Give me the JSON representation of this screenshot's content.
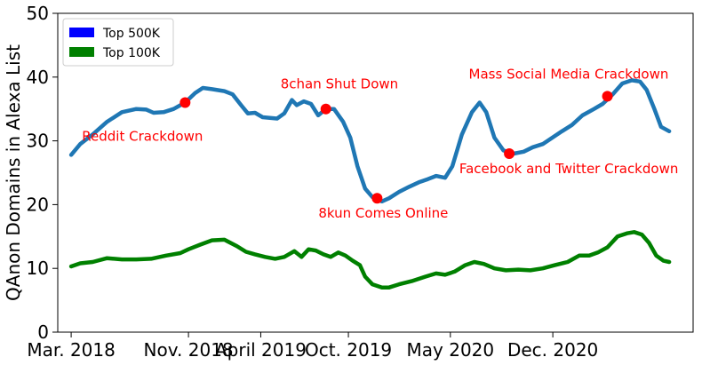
{
  "chart_data": {
    "type": "line",
    "title": "",
    "xlabel": "",
    "ylabel": "QAnon Domains in Alexa List",
    "ylim": [
      0,
      50
    ],
    "yticks": [
      0,
      10,
      20,
      30,
      40,
      50
    ],
    "xlim": [
      "2018-02-01",
      "2021-09-20"
    ],
    "xticks": [
      {
        "date": "2018-03-01",
        "label": "Mar. 2018"
      },
      {
        "date": "2018-11-01",
        "label": "Nov. 2018"
      },
      {
        "date": "2019-04-01",
        "label": "April 2019"
      },
      {
        "date": "2019-10-01",
        "label": "Oct. 2019"
      },
      {
        "date": "2020-05-01",
        "label": "May 2020"
      },
      {
        "date": "2020-12-01",
        "label": "Dec. 2020"
      }
    ],
    "grid": false,
    "legend": {
      "position": "top-left",
      "entries": [
        {
          "label": "Top 500K",
          "color": "#0000ff"
        },
        {
          "label": "Top 100K",
          "color": "#008000"
        }
      ]
    },
    "series": [
      {
        "key": "top500k",
        "color": "#1f77b4",
        "points": [
          [
            "2018-03-01",
            27.8
          ],
          [
            "2018-03-20",
            29.5
          ],
          [
            "2018-04-15",
            31.0
          ],
          [
            "2018-05-15",
            33.0
          ],
          [
            "2018-06-15",
            34.5
          ],
          [
            "2018-07-15",
            35.0
          ],
          [
            "2018-08-05",
            34.9
          ],
          [
            "2018-08-20",
            34.4
          ],
          [
            "2018-09-10",
            34.5
          ],
          [
            "2018-10-01",
            35.0
          ],
          [
            "2018-10-25",
            36.0
          ],
          [
            "2018-11-15",
            37.5
          ],
          [
            "2018-12-01",
            38.3
          ],
          [
            "2018-12-20",
            38.1
          ],
          [
            "2019-01-15",
            37.8
          ],
          [
            "2019-02-01",
            37.3
          ],
          [
            "2019-02-20",
            35.5
          ],
          [
            "2019-03-05",
            34.3
          ],
          [
            "2019-03-20",
            34.4
          ],
          [
            "2019-04-05",
            33.7
          ],
          [
            "2019-04-20",
            33.6
          ],
          [
            "2019-05-05",
            33.5
          ],
          [
            "2019-05-20",
            34.3
          ],
          [
            "2019-06-05",
            36.4
          ],
          [
            "2019-06-15",
            35.6
          ],
          [
            "2019-06-30",
            36.2
          ],
          [
            "2019-07-15",
            35.8
          ],
          [
            "2019-07-30",
            34.0
          ],
          [
            "2019-08-15",
            35.0
          ],
          [
            "2019-09-01",
            35.0
          ],
          [
            "2019-09-20",
            33.0
          ],
          [
            "2019-10-05",
            30.5
          ],
          [
            "2019-10-20",
            26.0
          ],
          [
            "2019-11-05",
            22.5
          ],
          [
            "2019-11-20",
            21.2
          ],
          [
            "2019-12-10",
            20.5
          ],
          [
            "2019-12-25",
            21.0
          ],
          [
            "2020-01-15",
            22.0
          ],
          [
            "2020-02-05",
            22.8
          ],
          [
            "2020-02-25",
            23.5
          ],
          [
            "2020-03-15",
            24.0
          ],
          [
            "2020-04-01",
            24.5
          ],
          [
            "2020-04-20",
            24.2
          ],
          [
            "2020-05-05",
            26.0
          ],
          [
            "2020-05-25",
            31.0
          ],
          [
            "2020-06-15",
            34.5
          ],
          [
            "2020-07-01",
            36.0
          ],
          [
            "2020-07-15",
            34.5
          ],
          [
            "2020-08-01",
            30.5
          ],
          [
            "2020-08-20",
            28.5
          ],
          [
            "2020-09-10",
            28.0
          ],
          [
            "2020-10-01",
            28.3
          ],
          [
            "2020-10-20",
            29.0
          ],
          [
            "2020-11-10",
            29.5
          ],
          [
            "2020-11-30",
            30.5
          ],
          [
            "2020-12-20",
            31.5
          ],
          [
            "2021-01-10",
            32.5
          ],
          [
            "2021-02-01",
            34.0
          ],
          [
            "2021-02-25",
            35.0
          ],
          [
            "2021-03-15",
            35.8
          ],
          [
            "2021-03-25",
            36.5
          ],
          [
            "2021-04-05",
            37.3
          ],
          [
            "2021-04-25",
            39.0
          ],
          [
            "2021-05-15",
            39.5
          ],
          [
            "2021-06-01",
            39.3
          ],
          [
            "2021-06-15",
            38.0
          ],
          [
            "2021-07-01",
            35.0
          ],
          [
            "2021-07-15",
            32.2
          ],
          [
            "2021-08-01",
            31.5
          ]
        ]
      },
      {
        "key": "top100k",
        "color": "#008000",
        "points": [
          [
            "2018-03-01",
            10.3
          ],
          [
            "2018-03-20",
            10.8
          ],
          [
            "2018-04-15",
            11.0
          ],
          [
            "2018-05-15",
            11.6
          ],
          [
            "2018-06-15",
            11.4
          ],
          [
            "2018-07-15",
            11.4
          ],
          [
            "2018-08-15",
            11.5
          ],
          [
            "2018-09-15",
            12.0
          ],
          [
            "2018-10-15",
            12.4
          ],
          [
            "2018-11-01",
            13.0
          ],
          [
            "2018-11-25",
            13.7
          ],
          [
            "2018-12-20",
            14.4
          ],
          [
            "2019-01-15",
            14.5
          ],
          [
            "2019-02-10",
            13.5
          ],
          [
            "2019-03-01",
            12.6
          ],
          [
            "2019-03-20",
            12.2
          ],
          [
            "2019-04-10",
            11.8
          ],
          [
            "2019-05-01",
            11.5
          ],
          [
            "2019-05-20",
            11.8
          ],
          [
            "2019-06-10",
            12.7
          ],
          [
            "2019-06-25",
            11.8
          ],
          [
            "2019-07-10",
            13.0
          ],
          [
            "2019-07-25",
            12.8
          ],
          [
            "2019-08-10",
            12.2
          ],
          [
            "2019-08-25",
            11.8
          ],
          [
            "2019-09-10",
            12.5
          ],
          [
            "2019-09-25",
            12.0
          ],
          [
            "2019-10-10",
            11.2
          ],
          [
            "2019-10-25",
            10.5
          ],
          [
            "2019-11-05",
            8.7
          ],
          [
            "2019-11-20",
            7.5
          ],
          [
            "2019-12-10",
            7.0
          ],
          [
            "2019-12-25",
            7.0
          ],
          [
            "2020-01-15",
            7.5
          ],
          [
            "2020-02-10",
            8.0
          ],
          [
            "2020-03-10",
            8.7
          ],
          [
            "2020-04-01",
            9.2
          ],
          [
            "2020-04-20",
            9.0
          ],
          [
            "2020-05-10",
            9.5
          ],
          [
            "2020-06-01",
            10.5
          ],
          [
            "2020-06-20",
            11.0
          ],
          [
            "2020-07-10",
            10.7
          ],
          [
            "2020-08-01",
            10.0
          ],
          [
            "2020-08-25",
            9.7
          ],
          [
            "2020-09-20",
            9.8
          ],
          [
            "2020-10-15",
            9.7
          ],
          [
            "2020-11-10",
            10.0
          ],
          [
            "2020-12-05",
            10.5
          ],
          [
            "2021-01-01",
            11.0
          ],
          [
            "2021-01-25",
            12.0
          ],
          [
            "2021-02-15",
            12.0
          ],
          [
            "2021-03-05",
            12.5
          ],
          [
            "2021-03-25",
            13.3
          ],
          [
            "2021-04-15",
            15.0
          ],
          [
            "2021-05-05",
            15.5
          ],
          [
            "2021-05-20",
            15.7
          ],
          [
            "2021-06-05",
            15.3
          ],
          [
            "2021-06-20",
            14.0
          ],
          [
            "2021-07-05",
            12.0
          ],
          [
            "2021-07-20",
            11.2
          ],
          [
            "2021-08-01",
            11.0
          ]
        ]
      }
    ],
    "annotations": [
      {
        "label": "Reddit Crackdown",
        "date": "2018-10-25",
        "value": 36,
        "label_placement": "below-left"
      },
      {
        "label": "8chan Shut Down",
        "date": "2019-08-15",
        "value": 35,
        "label_placement": "above-left"
      },
      {
        "label": "8kun Comes Online",
        "date": "2019-11-30",
        "value": 21,
        "label_placement": "below"
      },
      {
        "label": "Facebook and Twitter Crackdown",
        "date": "2020-09-01",
        "value": 28,
        "label_placement": "below"
      },
      {
        "label": "Mass Social Media Crackdown",
        "date": "2021-03-25",
        "value": 37,
        "label_placement": "above-left"
      }
    ],
    "colors": {
      "annotation": "#ff0000",
      "axis": "#000000",
      "background": "#ffffff"
    }
  }
}
